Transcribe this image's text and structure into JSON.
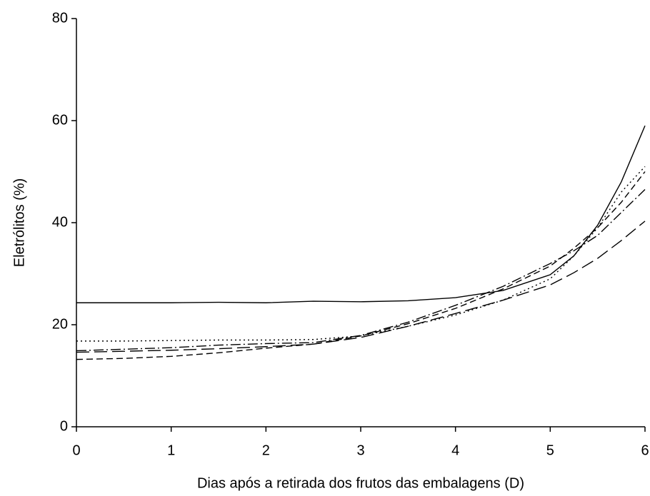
{
  "chart_data": {
    "type": "line",
    "x_label": "Dias após a retirada dos frutos das embalagens (D)",
    "y_label": "Eletrólitos (%)",
    "x": [
      0,
      0.5,
      1,
      1.5,
      2,
      2.5,
      3,
      3.5,
      4,
      4.5,
      5,
      5.25,
      5.5,
      5.75,
      6
    ],
    "series": [
      {
        "color": "#000000",
        "dash": "none",
        "values": [
          24.3,
          24.3,
          24.3,
          24.4,
          24.3,
          24.6,
          24.5,
          24.7,
          25.3,
          26.7,
          29.8,
          33.5,
          39.5,
          48,
          59
        ]
      },
      {
        "color": "#000000",
        "dash": "2,4",
        "values": [
          16.8,
          16.8,
          16.9,
          17,
          17,
          17.1,
          17.8,
          19.7,
          21.9,
          24.8,
          29,
          33.5,
          39,
          46,
          51
        ]
      },
      {
        "color": "#000000",
        "dash": "9,5",
        "values": [
          13.2,
          13.4,
          13.8,
          14.5,
          15.4,
          16.2,
          17.8,
          20.2,
          23.2,
          27,
          31.5,
          35,
          39,
          44,
          50
        ]
      },
      {
        "color": "#000000",
        "dash": "18,7",
        "values": [
          14.6,
          14.8,
          15,
          15.3,
          15.7,
          16.2,
          17.5,
          19.7,
          22.2,
          24.8,
          27.8,
          30.2,
          33,
          36.5,
          40.3
        ]
      },
      {
        "color": "#000000",
        "dash": "14,4,2,4",
        "values": [
          14.9,
          15.2,
          15.5,
          16,
          16.3,
          16.5,
          17.9,
          20.5,
          23.8,
          27.5,
          32,
          34.5,
          37.5,
          42,
          46.5
        ]
      }
    ],
    "xlim": [
      0,
      6
    ],
    "xticks": [
      0,
      1,
      2,
      3,
      4,
      5,
      6
    ],
    "ylim": [
      0,
      80
    ],
    "yticks": [
      0,
      20,
      40,
      60,
      80
    ]
  }
}
